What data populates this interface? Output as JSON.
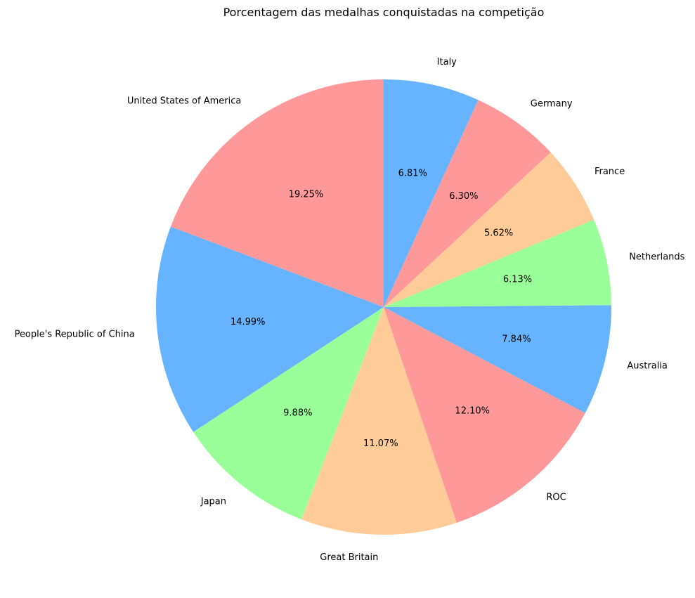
{
  "chart_data": {
    "type": "pie",
    "title": "Porcentagem das medalhas conquistadas na competição",
    "start_angle_deg": 90,
    "direction": "counterclockwise",
    "slices": [
      {
        "label": "United States of America",
        "value": 19.25,
        "pct_label": "19.25%",
        "color": "#ff9999"
      },
      {
        "label": "People's Republic of China",
        "value": 14.99,
        "pct_label": "14.99%",
        "color": "#66b3ff"
      },
      {
        "label": "Japan",
        "value": 9.88,
        "pct_label": "9.88%",
        "color": "#99ff99"
      },
      {
        "label": "Great Britain",
        "value": 11.07,
        "pct_label": "11.07%",
        "color": "#ffcc99"
      },
      {
        "label": "ROC",
        "value": 12.1,
        "pct_label": "12.10%",
        "color": "#ff9999"
      },
      {
        "label": "Australia",
        "value": 7.84,
        "pct_label": "7.84%",
        "color": "#66b3ff"
      },
      {
        "label": "Netherlands",
        "value": 6.13,
        "pct_label": "6.13%",
        "color": "#99ff99"
      },
      {
        "label": "France",
        "value": 5.62,
        "pct_label": "5.62%",
        "color": "#ffcc99"
      },
      {
        "label": "Germany",
        "value": 6.3,
        "pct_label": "6.30%",
        "color": "#ff9999"
      },
      {
        "label": "Italy",
        "value": 6.81,
        "pct_label": "6.81%",
        "color": "#66b3ff"
      }
    ]
  }
}
